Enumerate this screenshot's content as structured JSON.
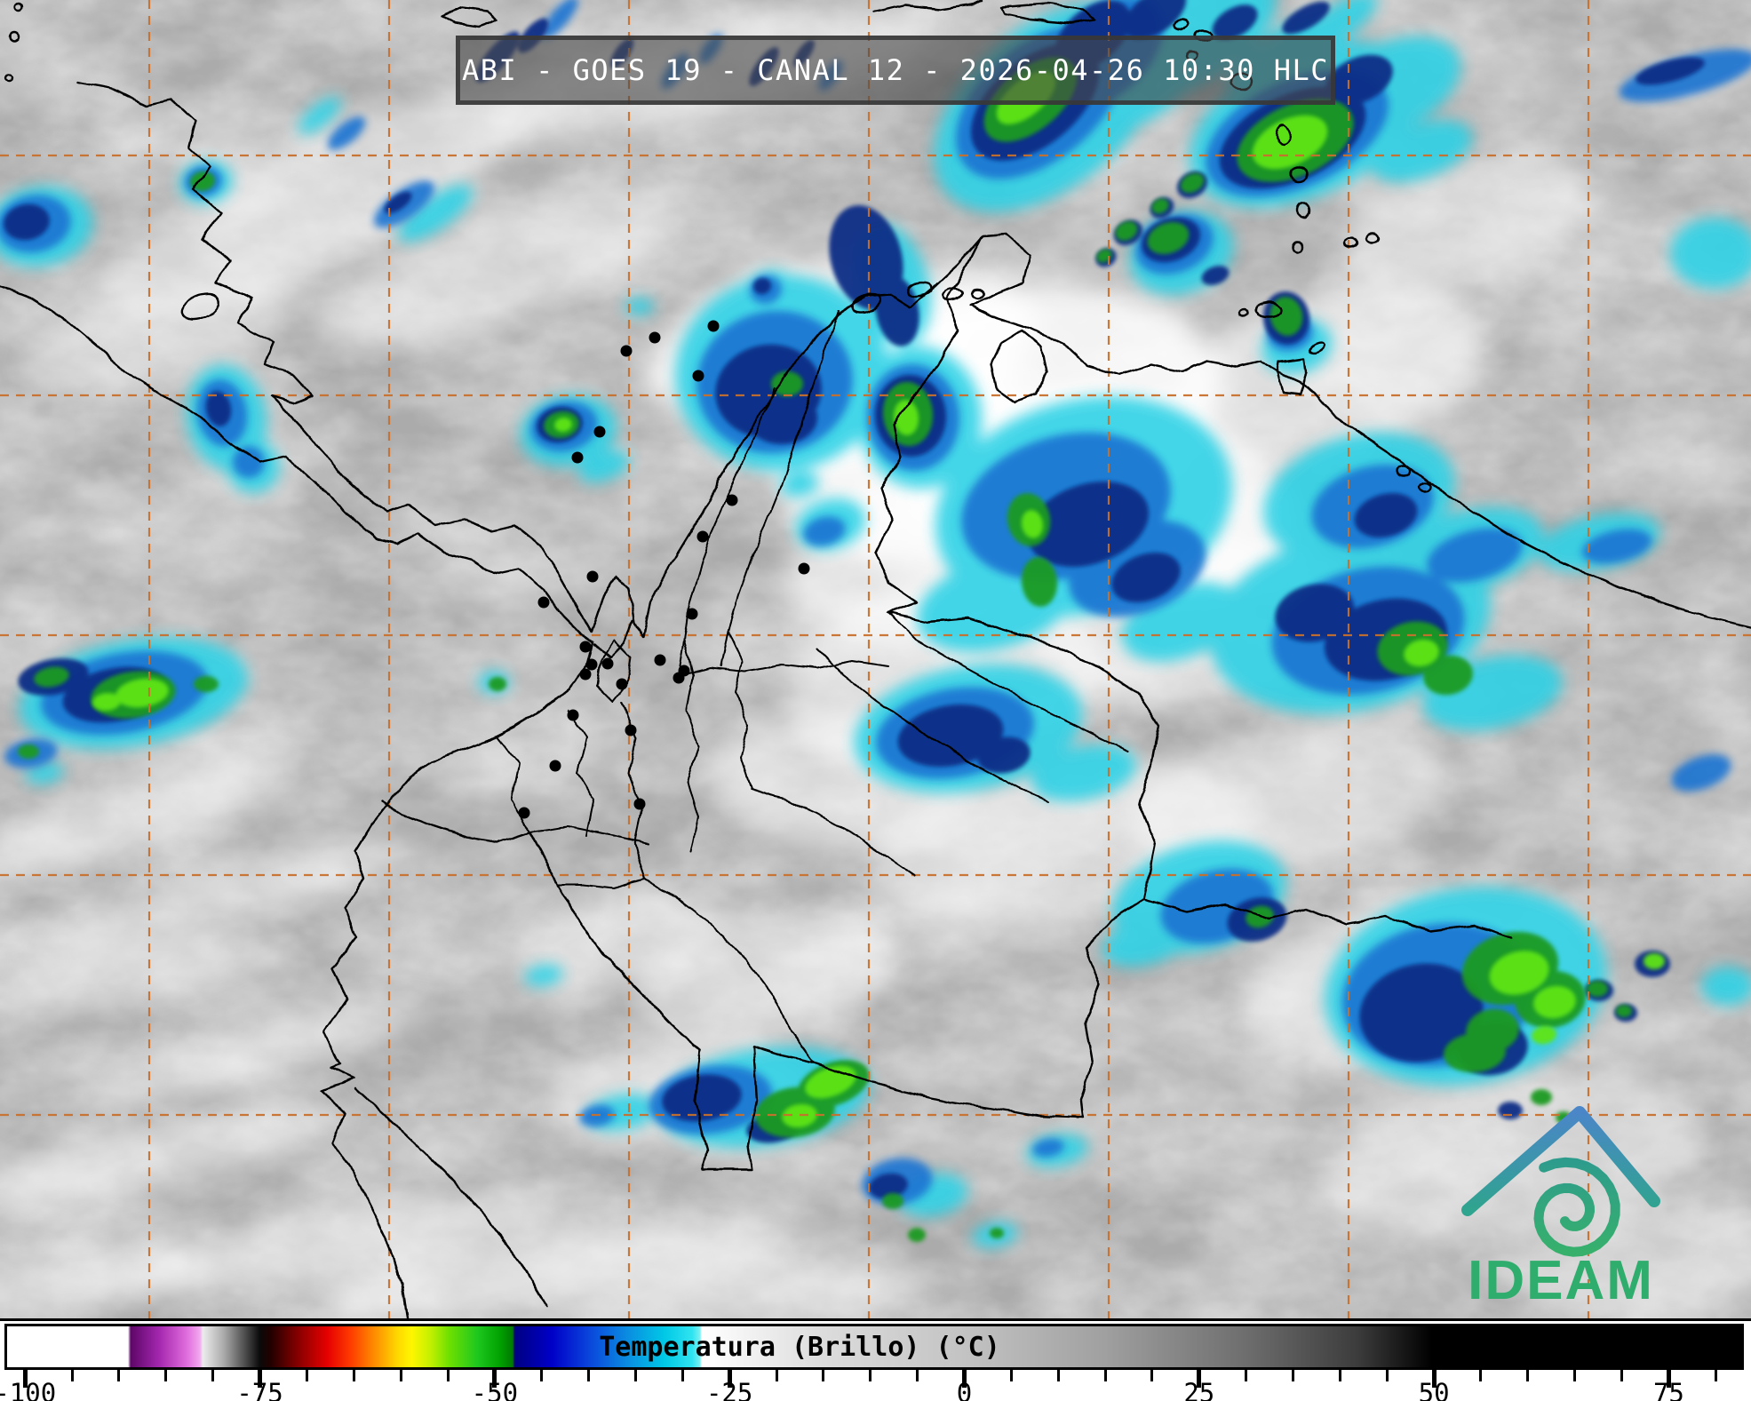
{
  "title_bar": {
    "text": "ABI - GOES 19 - CANAL 12 - 2026-04-26 10:30 HLC"
  },
  "logo": {
    "text": "IDEAM",
    "colors": {
      "roof_top": "#4a86c8",
      "roof_bottom": "#2fa48e",
      "spiral_outer": "#2e9c8c",
      "spiral_inner": "#37b06c",
      "text": "#2fad6d"
    }
  },
  "colorbar": {
    "label": "Temperatura (Brillo) (°C)",
    "range": [
      -102.2,
      83
    ],
    "major_ticks": [
      {
        "value": -100,
        "label": "-100"
      },
      {
        "value": -75,
        "label": "-75"
      },
      {
        "value": -50,
        "label": "-50"
      },
      {
        "value": -25,
        "label": "-25"
      },
      {
        "value": 0,
        "label": "0"
      },
      {
        "value": 25,
        "label": "25"
      },
      {
        "value": 50,
        "label": "50"
      },
      {
        "value": 75,
        "label": "75"
      }
    ],
    "minor_tick_step": 5,
    "minor_tick_min": -100,
    "minor_tick_max": 80,
    "gradient_stops": [
      [
        -102.2,
        "#ffffff"
      ],
      [
        -89.3,
        "#ffffff"
      ],
      [
        -89,
        "#5e0668"
      ],
      [
        -86,
        "#a326ae"
      ],
      [
        -83,
        "#e06ddd"
      ],
      [
        -81.6,
        "#f2a9ef"
      ],
      [
        -81.3,
        "#ececec"
      ],
      [
        -79,
        "#a8a8a8"
      ],
      [
        -76.5,
        "#404040"
      ],
      [
        -75.2,
        "#0a0a0a"
      ],
      [
        -74,
        "#230000"
      ],
      [
        -71,
        "#8c0000"
      ],
      [
        -68,
        "#e60000"
      ],
      [
        -65.5,
        "#ff3c00"
      ],
      [
        -63,
        "#ff8c00"
      ],
      [
        -60.5,
        "#ffd800"
      ],
      [
        -59,
        "#fef600"
      ],
      [
        -57,
        "#c3f000"
      ],
      [
        -55,
        "#6ee000"
      ],
      [
        -52,
        "#1ec81e"
      ],
      [
        -49.5,
        "#00a000"
      ],
      [
        -48.2,
        "#007800"
      ],
      [
        -48,
        "#000082"
      ],
      [
        -44,
        "#0000c8"
      ],
      [
        -40,
        "#0a46dc"
      ],
      [
        -36,
        "#0a8ce0"
      ],
      [
        -32,
        "#00c8e6"
      ],
      [
        -29,
        "#30e4f0"
      ],
      [
        -28.2,
        "#7cf0f4"
      ],
      [
        -28,
        "#ffffff"
      ],
      [
        -15,
        "#dcdcdc"
      ],
      [
        0,
        "#c3c3c3"
      ],
      [
        15,
        "#a0a0a0"
      ],
      [
        30,
        "#6e6e6e"
      ],
      [
        42,
        "#3c3c3c"
      ],
      [
        50,
        "#000000"
      ],
      [
        83,
        "#000000"
      ]
    ]
  },
  "graticule": {
    "color": "#c8702d",
    "x_lines": [
      168,
      438,
      708,
      978,
      1248,
      1518,
      1788
    ],
    "y_lines": [
      175,
      445,
      715,
      985,
      1255
    ]
  },
  "map": {
    "background": "#ababab",
    "border_color": "#000000",
    "city_dot_color": "#000000"
  }
}
